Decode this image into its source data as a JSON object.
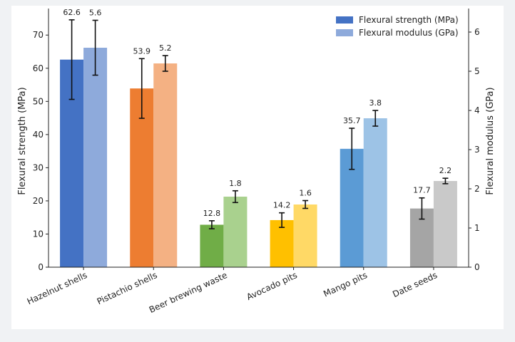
{
  "chart_data": {
    "type": "bar",
    "categories": [
      "Hazelnut shells",
      "Pistachio shells",
      "Beer brewing waste",
      "Avocado pits",
      "Mango pits",
      "Date seeds"
    ],
    "series": [
      {
        "name": "Flexural strength (MPa)",
        "axis": "left",
        "values": [
          62.6,
          53.9,
          12.8,
          14.2,
          35.7,
          17.7
        ],
        "error": [
          12,
          9,
          1.2,
          2.2,
          6.2,
          3.2
        ],
        "colors": [
          "#4472c4",
          "#ed7d31",
          "#70ad47",
          "#ffc000",
          "#5b9bd5",
          "#a5a5a5"
        ]
      },
      {
        "name": "Flexural modulus (GPa)",
        "axis": "right",
        "values": [
          5.6,
          5.2,
          1.8,
          1.6,
          3.8,
          2.2
        ],
        "error": [
          0.7,
          0.2,
          0.15,
          0.1,
          0.2,
          0.07
        ],
        "colors": [
          "#8eaadb",
          "#f4b183",
          "#a9d18e",
          "#ffd966",
          "#9dc3e6",
          "#c9c9c9"
        ]
      }
    ],
    "ylabel_left": "Flexural strength (MPa)",
    "ylabel_right": "Flexural modulus (GPa)",
    "ylim_left": [
      0,
      78
    ],
    "ylim_right": [
      0,
      6.6
    ],
    "yticks_left": [
      0,
      10,
      20,
      30,
      40,
      50,
      60,
      70
    ],
    "yticks_right": [
      0,
      1,
      2,
      3,
      4,
      5,
      6
    ],
    "value_labels": {
      "left": [
        "62.6",
        "53.9",
        "12.8",
        "14.2",
        "35.7",
        "17.7"
      ],
      "right": [
        "5.6",
        "5.2",
        "1.8",
        "1.6",
        "3.8",
        "2.2"
      ]
    },
    "legend_position": "top-right",
    "legend_colors": [
      "#4472c4",
      "#8eaadb"
    ],
    "grid": false
  }
}
